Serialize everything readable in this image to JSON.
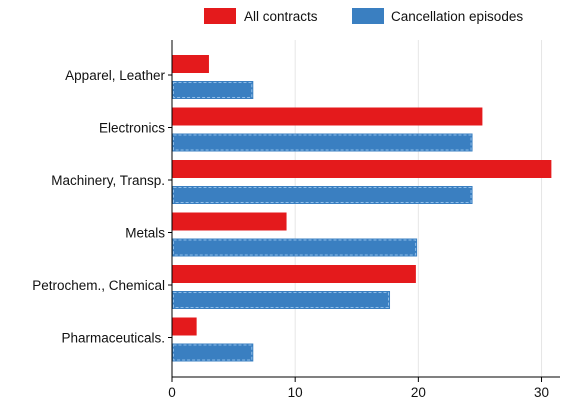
{
  "chart_data": {
    "type": "bar",
    "orientation": "horizontal",
    "categories": [
      "Apparel, Leather",
      "Electronics",
      "Machinery, Transp.",
      "Metals",
      "Petrochem., Chemical",
      "Pharmaceuticals."
    ],
    "series": [
      {
        "name": "All contracts",
        "color": "#e41a1c",
        "values": [
          3.0,
          25.2,
          30.8,
          9.3,
          19.8,
          2.0
        ]
      },
      {
        "name": "Cancellation episodes",
        "color": "#3a7fc1",
        "values": [
          6.6,
          24.4,
          24.4,
          19.9,
          17.7,
          6.6
        ]
      }
    ],
    "xlim": [
      0,
      31.5
    ],
    "xticks": [
      0,
      10,
      20,
      30
    ],
    "grid": "vertical",
    "legend": "top"
  }
}
